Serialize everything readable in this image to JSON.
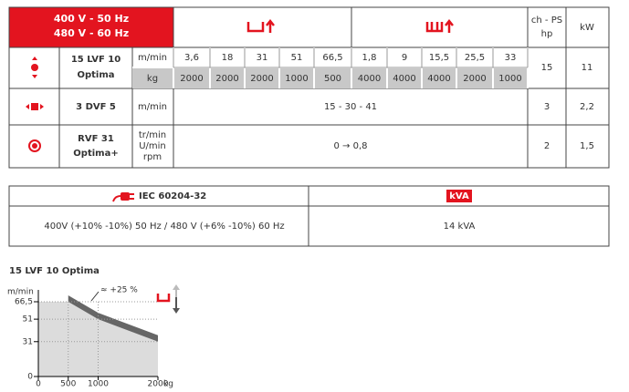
{
  "table": {
    "header": {
      "voltage": [
        "400 V - 50 Hz",
        "480 V - 60 Hz"
      ],
      "hp": [
        "ch - PS",
        "hp"
      ],
      "kw": "kW"
    },
    "rows": [
      {
        "name": [
          "15 LVF 10",
          "Optima"
        ],
        "units": [
          "m/min",
          "kg"
        ],
        "hoist_speeds": [
          "3,6",
          "18",
          "31",
          "51",
          "66,5"
        ],
        "hoist_loads": [
          "2000",
          "2000",
          "2000",
          "1000",
          "500"
        ],
        "trolley_speeds": [
          "1,8",
          "9",
          "15,5",
          "25,5",
          "33"
        ],
        "trolley_loads": [
          "4000",
          "4000",
          "4000",
          "2000",
          "1000"
        ],
        "hp": "15",
        "kw": "11"
      },
      {
        "name": [
          "3 DVF 5"
        ],
        "units": [
          "m/min"
        ],
        "speeds": "15 - 30 - 41",
        "hp": "3",
        "kw": "2,2"
      },
      {
        "name": [
          "RVF 31",
          "Optima+"
        ],
        "units": [
          "tr/min",
          "U/min",
          "rpm"
        ],
        "speeds": "0 → 0,8",
        "hp": "2",
        "kw": "1,5"
      }
    ]
  },
  "power_table": {
    "header": [
      "IEC 60204-32",
      "kVA"
    ],
    "values": [
      "400V (+10% -10%) 50 Hz / 480 V (+6% -10%) 60 Hz",
      "14 kVA"
    ]
  },
  "chart_data": {
    "type": "area",
    "title": "15 LVF 10 Optima",
    "y_label": "m/min",
    "x_label": "kg",
    "x": [
      0,
      500,
      1000,
      2000
    ],
    "values": [
      66.5,
      66.5,
      51,
      31
    ],
    "xlim": [
      0,
      2000
    ],
    "ylim": [
      0,
      66.5
    ],
    "xticks": [
      0,
      500,
      1000,
      2000
    ],
    "yticks": [
      0,
      31,
      51,
      {
        "value": 66.5,
        "label": "66,5"
      }
    ],
    "annotation": "≈ +25 %",
    "color": "#dcdcdc",
    "band_color": "#666666",
    "grid": true
  }
}
